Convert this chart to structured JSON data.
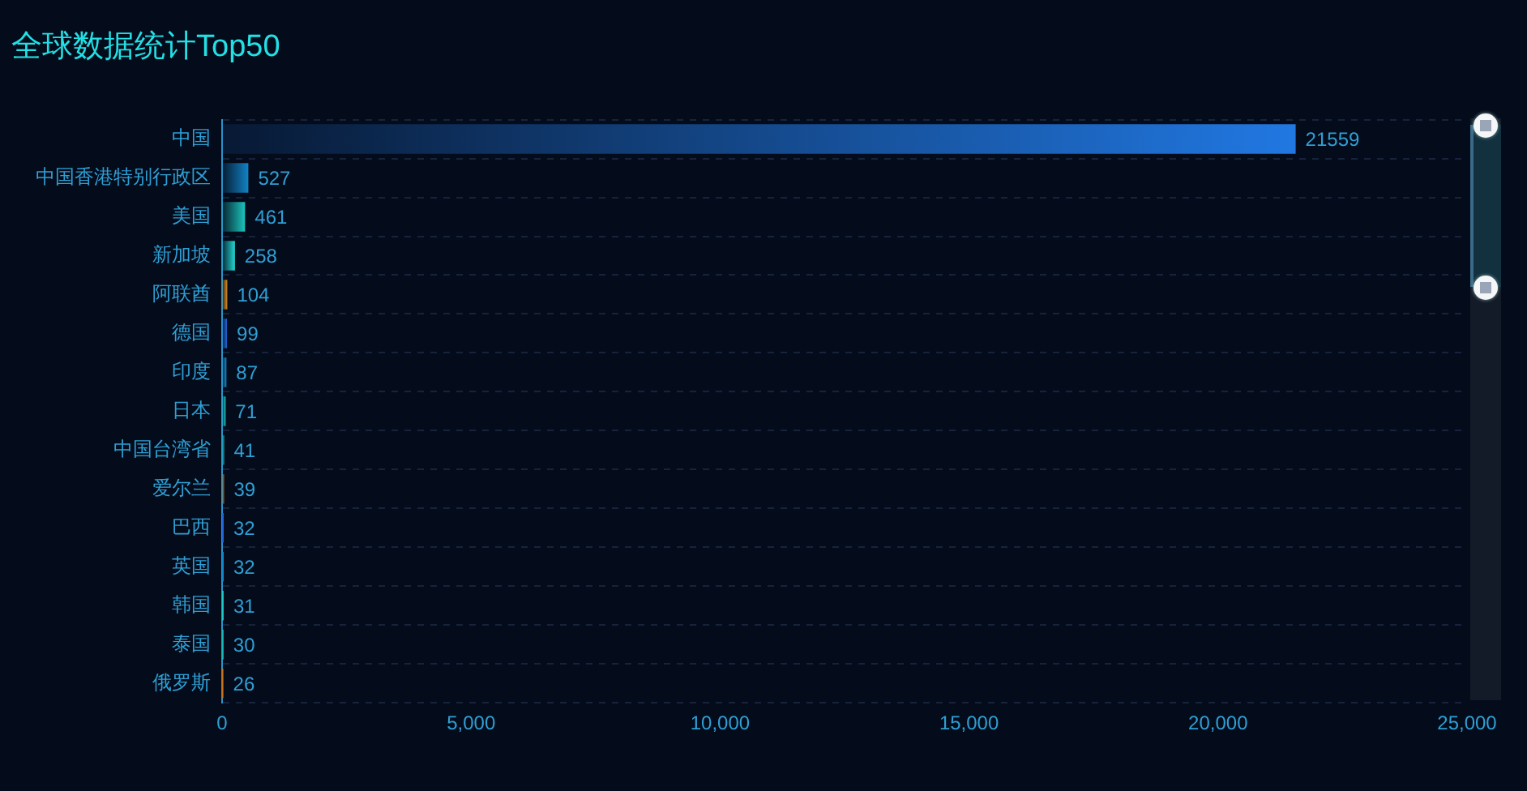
{
  "chart_data": {
    "type": "bar",
    "orientation": "horizontal",
    "title": "全球数据统计Top50",
    "categories": [
      "中国",
      "中国香港特别行政区",
      "美国",
      "新加坡",
      "阿联酋",
      "德国",
      "印度",
      "日本",
      "中国台湾省",
      "爱尔兰",
      "巴西",
      "英国",
      "韩国",
      "泰国",
      "俄罗斯"
    ],
    "values": [
      21559,
      527,
      461,
      258,
      104,
      99,
      87,
      71,
      41,
      39,
      32,
      32,
      31,
      30,
      26
    ],
    "colors": [
      "#2178e2",
      "#1283c6",
      "#1cc4bc",
      "#22d8d2",
      "#e08e1c",
      "#2168d8",
      "#1588cc",
      "#1ec8c4",
      "#1cb8b4",
      "#c8741c",
      "#2168d8",
      "#1588cc",
      "#1ec8c4",
      "#1cb8b4",
      "#c8741c"
    ],
    "xlim": [
      0,
      25000
    ],
    "xticks": [
      0,
      {
        "value": 5000,
        "label": "5,000"
      },
      {
        "value": 10000,
        "label": "10,000"
      },
      {
        "value": 15000,
        "label": "15,000"
      },
      {
        "value": 20000,
        "label": "20,000"
      },
      {
        "value": 25000,
        "label": "25,000"
      }
    ],
    "grid": "y",
    "legend": false,
    "data_labels": true
  }
}
